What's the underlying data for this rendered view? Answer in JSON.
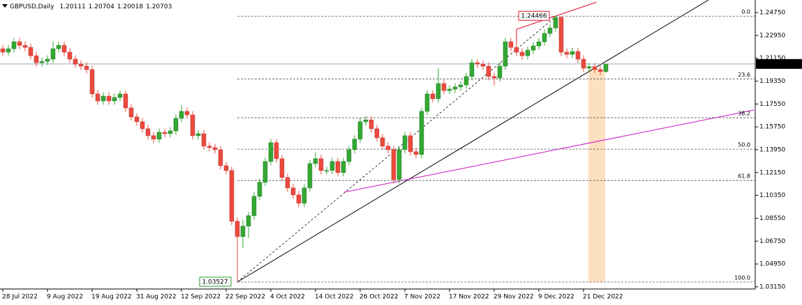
{
  "chart_data": {
    "type": "candlestick",
    "title": "GBPUSD,Daily",
    "categories": [
      "28 Jul 2022",
      null,
      null,
      null,
      null,
      null,
      null,
      null,
      "9 Aug 2022",
      null,
      null,
      null,
      null,
      null,
      null,
      null,
      "19 Aug 2022",
      null,
      null,
      null,
      null,
      null,
      null,
      null,
      "31 Aug 2022",
      null,
      null,
      null,
      null,
      null,
      null,
      null,
      "12 Sep 2022",
      null,
      null,
      null,
      null,
      null,
      null,
      null,
      "22 Sep 2022",
      null,
      null,
      null,
      null,
      null,
      null,
      null,
      "4 Oct 2022",
      null,
      null,
      null,
      null,
      null,
      null,
      null,
      "14 Oct 2022",
      null,
      null,
      null,
      null,
      null,
      null,
      null,
      "26 Oct 2022",
      null,
      null,
      null,
      null,
      null,
      null,
      null,
      "7 Nov 2022",
      null,
      null,
      null,
      null,
      null,
      null,
      null,
      "17 Nov 2022",
      null,
      null,
      null,
      null,
      null,
      null,
      null,
      "29 Nov 2022",
      null,
      null,
      null,
      null,
      null,
      null,
      null,
      "9 Dec 2022",
      null,
      null,
      null,
      null,
      null,
      null,
      null,
      "21 Dec 2022",
      null,
      null,
      null,
      null
    ],
    "open": [
      1.219,
      1.2163,
      1.219,
      1.2245,
      1.2217,
      1.2201,
      1.2135,
      1.208,
      1.2091,
      1.2108,
      1.219,
      1.2217,
      1.2163,
      1.2108,
      1.2069,
      1.2053,
      1.2026,
      1.1834,
      1.1779,
      1.1817,
      1.1779,
      1.1806,
      1.1834,
      1.1724,
      1.1653,
      1.1615,
      1.156,
      1.1505,
      1.1478,
      1.1532,
      1.1521,
      1.1543,
      1.1642,
      1.1697,
      1.1669,
      1.1505,
      1.1521,
      1.1423,
      1.1412,
      1.1395,
      1.1269,
      1.1231,
      1.0831,
      1.071,
      1.0793,
      1.0875,
      1.1028,
      1.1138,
      1.1302,
      1.145,
      1.1324,
      1.1176,
      1.1094,
      1.1039,
      1.0973,
      1.1094,
      1.1286,
      1.1324,
      1.1231,
      1.1231,
      1.1302,
      1.1215,
      1.1302,
      1.1395,
      1.1478,
      1.1615,
      1.163,
      1.156,
      1.1489,
      1.1423,
      1.1395,
      1.116,
      1.1395,
      1.1505,
      1.1379,
      1.1357,
      1.1697,
      1.1834,
      1.1796,
      1.1916,
      1.1861,
      1.1872,
      1.1889,
      1.1905,
      1.1971,
      1.208,
      1.2069,
      1.2053,
      1.1971,
      1.196,
      1.2053,
      1.2245,
      1.2201,
      1.2163,
      1.2135,
      1.2179,
      1.2212,
      1.2245,
      1.2311,
      1.2354,
      1.2437,
      1.2163,
      1.2146,
      1.2168,
      1.2108,
      1.2037,
      1.2048,
      1.2026,
      1.20111
    ],
    "high": [
      1.222,
      1.222,
      1.2275,
      1.2275,
      1.2247,
      1.2231,
      1.2165,
      1.2121,
      1.2138,
      1.225,
      1.2247,
      1.2247,
      1.2193,
      1.2138,
      1.2099,
      1.2083,
      1.2056,
      1.1864,
      1.1847,
      1.1847,
      1.1836,
      1.1864,
      1.1864,
      1.1754,
      1.1683,
      1.1645,
      1.159,
      1.1535,
      1.1562,
      1.1562,
      1.1573,
      1.1672,
      1.1747,
      1.1727,
      1.1699,
      1.1551,
      1.1551,
      1.1453,
      1.1442,
      1.1425,
      1.1299,
      1.1261,
      1.0861,
      1.0843,
      1.0905,
      1.1058,
      1.1168,
      1.1332,
      1.148,
      1.148,
      1.1354,
      1.1206,
      1.1124,
      1.1069,
      1.1124,
      1.1316,
      1.1374,
      1.1354,
      1.1261,
      1.1332,
      1.1332,
      1.1332,
      1.1425,
      1.1508,
      1.1645,
      1.166,
      1.166,
      1.159,
      1.1519,
      1.1453,
      1.1425,
      1.1425,
      1.1535,
      1.1535,
      1.1409,
      1.1727,
      1.1864,
      1.1864,
      1.2036,
      1.1946,
      1.1902,
      1.1919,
      1.1935,
      1.2001,
      1.211,
      1.211,
      1.2099,
      1.2083,
      1.2001,
      1.2083,
      1.2275,
      1.2275,
      1.2231,
      1.2193,
      1.2209,
      1.2242,
      1.2275,
      1.2341,
      1.2384,
      1.24466,
      1.2447,
      1.2193,
      1.2198,
      1.2198,
      1.2138,
      1.2078,
      1.2078,
      1.2056,
      1.20704
    ],
    "low": [
      1.2133,
      1.2133,
      1.216,
      1.2187,
      1.2171,
      1.2105,
      1.205,
      1.205,
      1.2061,
      1.2078,
      1.216,
      1.2133,
      1.2078,
      1.2039,
      1.2023,
      1.1996,
      1.1804,
      1.1749,
      1.1749,
      1.1749,
      1.1749,
      1.1776,
      1.1694,
      1.1623,
      1.1585,
      1.153,
      1.1475,
      1.1448,
      1.1448,
      1.1491,
      1.1491,
      1.1513,
      1.1612,
      1.1639,
      1.1475,
      1.1475,
      1.1393,
      1.1382,
      1.1365,
      1.1239,
      1.1201,
      1.0801,
      1.03527,
      1.062,
      1.07,
      1.0845,
      1.0998,
      1.1108,
      1.1272,
      1.1294,
      1.1146,
      1.1064,
      1.1009,
      1.0943,
      1.0943,
      1.1064,
      1.1256,
      1.1201,
      1.1201,
      1.1201,
      1.1185,
      1.1185,
      1.1272,
      1.1365,
      1.1448,
      1.1585,
      1.153,
      1.1459,
      1.1393,
      1.1365,
      1.113,
      1.113,
      1.1365,
      1.1349,
      1.1327,
      1.1327,
      1.1667,
      1.1766,
      1.1766,
      1.1831,
      1.1831,
      1.1842,
      1.1859,
      1.1875,
      1.1941,
      1.2039,
      1.2023,
      1.1941,
      1.19,
      1.193,
      1.2023,
      1.2171,
      1.2133,
      1.2105,
      1.2105,
      1.2149,
      1.2182,
      1.2215,
      1.2281,
      1.2324,
      1.2133,
      1.2116,
      1.2116,
      1.2078,
      1.2007,
      1.2007,
      1.1996,
      1.1981,
      1.20018
    ],
    "close": [
      1.2163,
      1.219,
      1.2245,
      1.2217,
      1.2201,
      1.2135,
      1.208,
      1.2091,
      1.2108,
      1.219,
      1.2217,
      1.2163,
      1.2108,
      1.2069,
      1.2053,
      1.2026,
      1.1834,
      1.1779,
      1.1817,
      1.1779,
      1.1806,
      1.1834,
      1.1724,
      1.1653,
      1.1615,
      1.156,
      1.1505,
      1.1478,
      1.1532,
      1.1521,
      1.1543,
      1.1642,
      1.1697,
      1.1669,
      1.1505,
      1.1521,
      1.1423,
      1.1412,
      1.1395,
      1.1269,
      1.1231,
      1.0831,
      1.071,
      1.0793,
      1.0875,
      1.1028,
      1.1138,
      1.1302,
      1.145,
      1.1324,
      1.1176,
      1.1094,
      1.1039,
      1.0973,
      1.1094,
      1.1286,
      1.1324,
      1.1231,
      1.1231,
      1.1302,
      1.1215,
      1.1302,
      1.1395,
      1.1478,
      1.1615,
      1.163,
      1.156,
      1.1489,
      1.1423,
      1.1395,
      1.116,
      1.1395,
      1.1505,
      1.1379,
      1.1357,
      1.1697,
      1.1834,
      1.1796,
      1.1916,
      1.1861,
      1.1872,
      1.1889,
      1.1905,
      1.1971,
      1.208,
      1.2069,
      1.2053,
      1.1971,
      1.196,
      1.2053,
      1.2245,
      1.2201,
      1.2163,
      1.2135,
      1.2179,
      1.2212,
      1.2245,
      1.2311,
      1.2354,
      1.2437,
      1.2163,
      1.2146,
      1.2168,
      1.2108,
      1.2037,
      1.2048,
      1.2026,
      1.2011,
      1.20703
    ],
    "up_color": "#34a834",
    "down_color": "#ec4a3f",
    "ylim": [
      1.0298,
      1.2574
    ],
    "yticks": [
      {
        "value": 1.2475,
        "label": "1.24750"
      },
      {
        "value": 1.2295,
        "label": "1.22950"
      },
      {
        "value": 1.2115,
        "label": "1.21150"
      },
      {
        "value": 1.1935,
        "label": "1.19350"
      },
      {
        "value": 1.1755,
        "label": "1.17550"
      },
      {
        "value": 1.1575,
        "label": "1.15750"
      },
      {
        "value": 1.1395,
        "label": "1.13950"
      },
      {
        "value": 1.1215,
        "label": "1.12150"
      },
      {
        "value": 1.1035,
        "label": "1.10350"
      },
      {
        "value": 1.0855,
        "label": "1.08550"
      },
      {
        "value": 1.0675,
        "label": "1.06750"
      },
      {
        "value": 1.0495,
        "label": "1.04950"
      },
      {
        "value": 1.0315,
        "label": "1.03150"
      }
    ],
    "grid": false,
    "fib": {
      "high": 1.24466,
      "low": 1.03527,
      "levels": [
        {
          "value": 0,
          "label": "0.0"
        },
        23.6,
        38.2,
        {
          "value": 50,
          "label": "50.0"
        },
        61.8,
        {
          "value": 100,
          "label": "100.0"
        }
      ]
    }
  }
}
